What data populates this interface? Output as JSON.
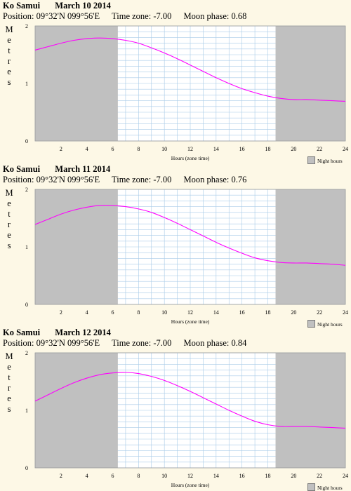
{
  "legend_label": "Night hours",
  "colors": {
    "night": "#c0c0c0",
    "grid": "#a8cbe8",
    "curve": "#ff00ff",
    "background": "#fdf8e6"
  },
  "chart_data": [
    {
      "type": "line",
      "location": "Ko Samui",
      "date": "March 10 2014",
      "position_label": "Position:",
      "position": "09°32'N 099°56'E",
      "timezone_label": "Time zone:",
      "timezone": "-7.00",
      "moon_label": "Moon phase:",
      "moon_phase": "0.68",
      "ylabel": "Metres",
      "xlabel": "Hours (zone time)",
      "xlim": [
        0,
        24
      ],
      "ylim": [
        0,
        2
      ],
      "xticks": [
        2,
        4,
        6,
        8,
        10,
        12,
        14,
        16,
        18,
        20,
        22,
        24
      ],
      "yticks": [
        0,
        1,
        2
      ],
      "night_hours": [
        [
          0,
          6.4
        ],
        [
          18.6,
          24
        ]
      ],
      "series": [
        {
          "x": [
            0,
            1,
            2,
            3,
            4,
            5,
            6,
            7,
            8,
            9,
            10,
            11,
            12,
            13,
            14,
            15,
            16,
            17,
            18,
            19,
            20,
            21,
            22,
            23,
            24
          ],
          "values": [
            1.58,
            1.64,
            1.7,
            1.75,
            1.78,
            1.79,
            1.78,
            1.75,
            1.7,
            1.62,
            1.53,
            1.43,
            1.32,
            1.21,
            1.1,
            1.0,
            0.91,
            0.84,
            0.78,
            0.74,
            0.72,
            0.72,
            0.71,
            0.7,
            0.69
          ]
        }
      ]
    },
    {
      "type": "line",
      "location": "Ko Samui",
      "date": "March 11 2014",
      "position_label": "Position:",
      "position": "09°32'N 099°56'E",
      "timezone_label": "Time zone:",
      "timezone": "-7.00",
      "moon_label": "Moon phase:",
      "moon_phase": "0.76",
      "ylabel": "Metres",
      "xlabel": "Hours (zone time)",
      "xlim": [
        0,
        24
      ],
      "ylim": [
        0,
        2
      ],
      "xticks": [
        2,
        4,
        6,
        8,
        10,
        12,
        14,
        16,
        18,
        20,
        22,
        24
      ],
      "yticks": [
        0,
        1,
        2
      ],
      "night_hours": [
        [
          0,
          6.4
        ],
        [
          18.6,
          24
        ]
      ],
      "series": [
        {
          "x": [
            0,
            1,
            2,
            3,
            4,
            5,
            6,
            7,
            8,
            9,
            10,
            11,
            12,
            13,
            14,
            15,
            16,
            17,
            18,
            19,
            20,
            21,
            22,
            23,
            24
          ],
          "values": [
            1.39,
            1.48,
            1.57,
            1.64,
            1.69,
            1.72,
            1.72,
            1.7,
            1.66,
            1.6,
            1.51,
            1.41,
            1.3,
            1.19,
            1.08,
            0.98,
            0.89,
            0.81,
            0.76,
            0.73,
            0.72,
            0.72,
            0.71,
            0.7,
            0.68
          ]
        }
      ]
    },
    {
      "type": "line",
      "location": "Ko Samui",
      "date": "March 12 2014",
      "position_label": "Position:",
      "position": "09°32'N 099°56'E",
      "timezone_label": "Time zone:",
      "timezone": "-7.00",
      "moon_label": "Moon phase:",
      "moon_phase": "0.84",
      "ylabel": "Metres",
      "xlabel": "Hours (zone time)",
      "xlim": [
        0,
        24
      ],
      "ylim": [
        0,
        2
      ],
      "xticks": [
        2,
        4,
        6,
        8,
        10,
        12,
        14,
        16,
        18,
        20,
        22,
        24
      ],
      "yticks": [
        0,
        1,
        2
      ],
      "night_hours": [
        [
          0,
          6.4
        ],
        [
          18.6,
          24
        ]
      ],
      "series": [
        {
          "x": [
            0,
            1,
            2,
            3,
            4,
            5,
            6,
            7,
            8,
            9,
            10,
            11,
            12,
            13,
            14,
            15,
            16,
            17,
            18,
            19,
            20,
            21,
            22,
            23,
            24
          ],
          "values": [
            1.16,
            1.27,
            1.38,
            1.48,
            1.56,
            1.62,
            1.65,
            1.66,
            1.64,
            1.59,
            1.52,
            1.43,
            1.33,
            1.22,
            1.11,
            1.0,
            0.9,
            0.81,
            0.75,
            0.72,
            0.72,
            0.72,
            0.71,
            0.7,
            0.69
          ]
        }
      ]
    }
  ]
}
